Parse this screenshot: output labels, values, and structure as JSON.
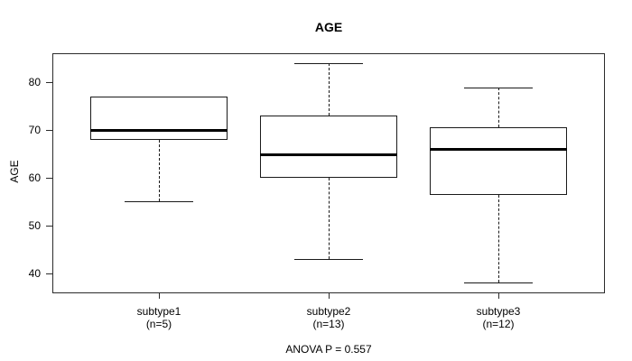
{
  "chart_data": {
    "type": "boxplot",
    "title": "AGE",
    "ylabel": "AGE",
    "annotation": "ANOVA P = 0.557",
    "yticks": [
      40,
      50,
      60,
      70,
      80
    ],
    "ylim": [
      35.8,
      86.1
    ],
    "grid": false,
    "groups": [
      {
        "label": "subtype1",
        "sublabel": "(n=5)",
        "n": 5,
        "whisker_low": 55,
        "q1": 68,
        "median": 70,
        "q3": 77,
        "whisker_high": 77
      },
      {
        "label": "subtype2",
        "sublabel": "(n=13)",
        "n": 13,
        "whisker_low": 43,
        "q1": 60,
        "median": 65,
        "q3": 73,
        "whisker_high": 84
      },
      {
        "label": "subtype3",
        "sublabel": "(n=12)",
        "n": 12,
        "whisker_low": 38,
        "q1": 56.5,
        "median": 66,
        "q3": 70.5,
        "whisker_high": 79
      }
    ],
    "colors": {
      "line": "#000000",
      "background": "#ffffff"
    }
  }
}
